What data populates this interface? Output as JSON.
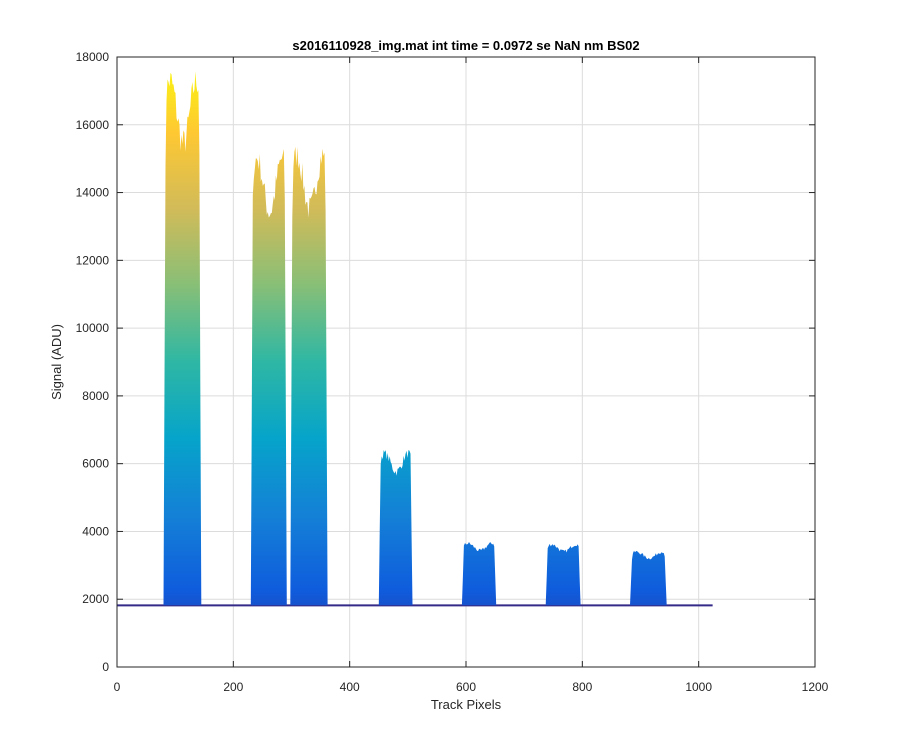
{
  "chart_data": {
    "type": "area",
    "title": "s2016110928_img.mat int time = 0.0972 se  NaN nm BS02",
    "xlabel": "Track Pixels",
    "ylabel": "Signal (ADU)",
    "xlim": [
      0,
      1200
    ],
    "ylim": [
      0,
      18000
    ],
    "xticks": [
      0,
      200,
      400,
      600,
      800,
      1000,
      1200
    ],
    "yticks": [
      0,
      2000,
      4000,
      6000,
      8000,
      10000,
      12000,
      14000,
      16000,
      18000
    ],
    "grid": true,
    "colormap": [
      "#352a87",
      "#0f5cdd",
      "#1481d6",
      "#06a4ca",
      "#2eb7a4",
      "#87bf77",
      "#d1bb59",
      "#fec832",
      "#f9fb0e"
    ],
    "x_range": [
      0,
      1024
    ],
    "baseline": 1820,
    "peaks": [
      {
        "x_start": 80,
        "x_end": 145,
        "peak": 17300
      },
      {
        "x_start": 230,
        "x_end": 292,
        "peak": 15000
      },
      {
        "x_start": 298,
        "x_end": 362,
        "peak": 15100
      },
      {
        "x_start": 450,
        "x_end": 508,
        "peak": 6300
      },
      {
        "x_start": 593,
        "x_end": 652,
        "peak": 3650
      },
      {
        "x_start": 737,
        "x_end": 797,
        "peak": 3620
      },
      {
        "x_start": 882,
        "x_end": 945,
        "peak": 3400
      }
    ]
  }
}
